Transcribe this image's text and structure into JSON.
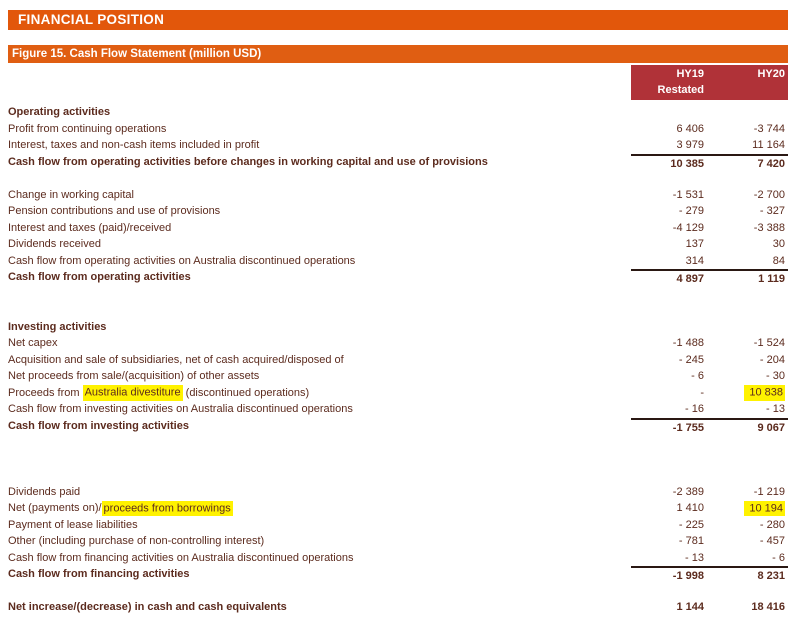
{
  "banner": {
    "title": "FINANCIAL POSITION"
  },
  "figure": {
    "caption": "Figure 15. Cash Flow Statement (million USD)"
  },
  "colors": {
    "banner_orange": "#E2570B",
    "figure_bar_orange": "#E05E12",
    "column_header_red": "#B03238",
    "body_text_maroon": "#5C2B1E",
    "highlight_yellow": "#FFF200",
    "total_rule_dark": "#2A1813"
  },
  "table": {
    "header": {
      "col1_line1": "HY19",
      "col1_line2": "Restated",
      "col2_line1": "HY20",
      "col2_line2": ""
    },
    "rows": [
      {
        "type": "section",
        "label": "Operating activities"
      },
      {
        "type": "item",
        "label": "Profit from continuing operations",
        "hy19": "6 406",
        "hy20": "-3 744"
      },
      {
        "type": "item",
        "label": "Interest, taxes and non-cash items included in profit",
        "hy19": "3 979",
        "hy20": "11 164"
      },
      {
        "type": "total",
        "label": "Cash flow from operating activities before changes in working capital and use of provisions",
        "hy19": "10 385",
        "hy20": "7 420",
        "rule_above": true
      },
      {
        "type": "spacer",
        "lines": 1
      },
      {
        "type": "item",
        "label": "Change in working capital",
        "hy19": "-1 531",
        "hy20": "-2 700"
      },
      {
        "type": "item",
        "label": "Pension contributions and use of provisions",
        "hy19": "- 279",
        "hy20": "- 327"
      },
      {
        "type": "item",
        "label": "Interest and taxes (paid)/received",
        "hy19": "-4 129",
        "hy20": "-3 388"
      },
      {
        "type": "item",
        "label": "Dividends received",
        "hy19": "137",
        "hy20": "30"
      },
      {
        "type": "item",
        "label": "Cash flow from operating activities on Australia discontinued operations",
        "hy19": "314",
        "hy20": "84"
      },
      {
        "type": "total",
        "label": "Cash flow from operating activities",
        "hy19": "4 897",
        "hy20": "1 119",
        "rule_above": true
      },
      {
        "type": "spacer",
        "lines": 2
      },
      {
        "type": "section",
        "label": "Investing activities"
      },
      {
        "type": "item",
        "label": "Net capex",
        "hy19": "-1 488",
        "hy20": "-1 524"
      },
      {
        "type": "item",
        "label": "Acquisition and sale of subsidiaries, net of cash acquired/disposed of",
        "hy19": "- 245",
        "hy20": "- 204"
      },
      {
        "type": "item",
        "label": "Net proceeds from sale/(acquisition) of other assets",
        "hy19": "- 6",
        "hy20": "- 30"
      },
      {
        "type": "item",
        "label_parts": [
          {
            "text": "Proceeds from ",
            "highlight": false
          },
          {
            "text": "Australia divestiture",
            "highlight": true
          },
          {
            "text": " (discontinued operations)",
            "highlight": false
          }
        ],
        "hy19": "-",
        "hy20": "10 838",
        "hy20_highlight": true
      },
      {
        "type": "item",
        "label": "Cash flow from investing activities on Australia discontinued operations",
        "hy19": "- 16",
        "hy20": "- 13"
      },
      {
        "type": "total",
        "label": "Cash flow from investing activities",
        "hy19": "-1 755",
        "hy20": "9 067",
        "rule_above": true
      },
      {
        "type": "spacer",
        "lines": 3
      },
      {
        "type": "item",
        "label": "Dividends paid",
        "hy19": "-2 389",
        "hy20": "-1 219"
      },
      {
        "type": "item",
        "label_parts": [
          {
            "text": "Net (payments on)/",
            "highlight": false
          },
          {
            "text": "proceeds from borrowings",
            "highlight": true
          }
        ],
        "hy19": "1 410",
        "hy20": "10 194",
        "hy20_highlight": true
      },
      {
        "type": "item",
        "label": "Payment of lease liabilities",
        "hy19": "- 225",
        "hy20": "- 280"
      },
      {
        "type": "item",
        "label": "Other (including purchase of non-controlling interest)",
        "hy19": "- 781",
        "hy20": "- 457"
      },
      {
        "type": "item",
        "label": "Cash flow from financing activities on Australia discontinued operations",
        "hy19": "- 13",
        "hy20": "- 6"
      },
      {
        "type": "total",
        "label": "Cash flow from financing activities",
        "hy19": "-1 998",
        "hy20": "8 231",
        "rule_above": true
      },
      {
        "type": "spacer",
        "lines": 1
      },
      {
        "type": "total",
        "label": "Net increase/(decrease) in cash and cash equivalents",
        "hy19": "1 144",
        "hy20": "18 416",
        "rule_above": false
      }
    ]
  }
}
